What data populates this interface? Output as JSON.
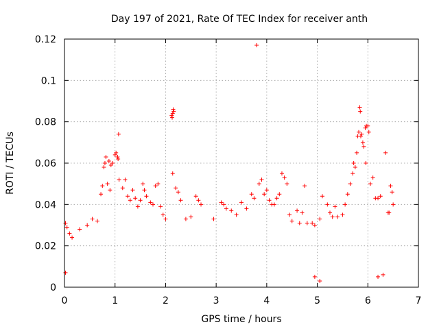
{
  "chart_data": {
    "type": "scatter",
    "title": "Day 197 of 2021, Rate Of TEC Index for receiver anth",
    "xlabel": "GPS time / hours",
    "ylabel": "ROTI / TECUs",
    "xlim": [
      0,
      7
    ],
    "ylim": [
      0,
      0.12
    ],
    "xticks": [
      0,
      1,
      2,
      3,
      4,
      5,
      6,
      7
    ],
    "xtick_labels": [
      "0",
      "1",
      "2",
      "3",
      "4",
      "5",
      "6",
      "7"
    ],
    "yticks": [
      0,
      0.02,
      0.04,
      0.06,
      0.08,
      0.1,
      0.12
    ],
    "ytick_labels": [
      "0",
      "0.02",
      "0.04",
      "0.06",
      "0.08",
      "0.1",
      "0.12"
    ],
    "grid": true,
    "marker": "+",
    "color": "#ff0000",
    "series": [
      {
        "name": "ROTI",
        "points": [
          [
            0.02,
            0.031
          ],
          [
            0.05,
            0.029
          ],
          [
            0.1,
            0.026
          ],
          [
            0.15,
            0.024
          ],
          [
            0.3,
            0.028
          ],
          [
            0.45,
            0.03
          ],
          [
            0.55,
            0.033
          ],
          [
            0.65,
            0.032
          ],
          [
            0.72,
            0.045
          ],
          [
            0.75,
            0.049
          ],
          [
            0.78,
            0.058
          ],
          [
            0.8,
            0.06
          ],
          [
            0.82,
            0.063
          ],
          [
            0.88,
            0.061
          ],
          [
            0.92,
            0.059
          ],
          [
            0.95,
            0.06
          ],
          [
            0.85,
            0.05
          ],
          [
            0.9,
            0.047
          ],
          [
            1.0,
            0.064
          ],
          [
            1.02,
            0.065
          ],
          [
            1.05,
            0.063
          ],
          [
            1.06,
            0.062
          ],
          [
            1.07,
            0.074
          ],
          [
            1.08,
            0.052
          ],
          [
            1.15,
            0.048
          ],
          [
            1.2,
            0.052
          ],
          [
            1.25,
            0.044
          ],
          [
            1.3,
            0.042
          ],
          [
            1.35,
            0.047
          ],
          [
            1.4,
            0.043
          ],
          [
            1.45,
            0.039
          ],
          [
            1.5,
            0.042
          ],
          [
            1.55,
            0.05
          ],
          [
            1.58,
            0.047
          ],
          [
            1.62,
            0.044
          ],
          [
            1.7,
            0.041
          ],
          [
            1.75,
            0.04
          ],
          [
            1.8,
            0.049
          ],
          [
            1.85,
            0.05
          ],
          [
            1.9,
            0.039
          ],
          [
            1.95,
            0.035
          ],
          [
            2.0,
            0.033
          ],
          [
            2.12,
            0.083
          ],
          [
            2.13,
            0.082
          ],
          [
            2.14,
            0.084
          ],
          [
            2.15,
            0.086
          ],
          [
            2.16,
            0.085
          ],
          [
            2.14,
            0.055
          ],
          [
            2.2,
            0.048
          ],
          [
            2.25,
            0.046
          ],
          [
            2.3,
            0.042
          ],
          [
            2.4,
            0.033
          ],
          [
            2.6,
            0.044
          ],
          [
            2.65,
            0.042
          ],
          [
            2.7,
            0.04
          ],
          [
            2.5,
            0.034
          ],
          [
            2.95,
            0.033
          ],
          [
            3.1,
            0.041
          ],
          [
            3.15,
            0.04
          ],
          [
            3.2,
            0.038
          ],
          [
            3.3,
            0.037
          ],
          [
            3.4,
            0.035
          ],
          [
            3.5,
            0.041
          ],
          [
            3.6,
            0.038
          ],
          [
            3.7,
            0.045
          ],
          [
            3.75,
            0.043
          ],
          [
            3.8,
            0.117
          ],
          [
            3.85,
            0.05
          ],
          [
            3.9,
            0.052
          ],
          [
            3.95,
            0.045
          ],
          [
            4.0,
            0.047
          ],
          [
            4.05,
            0.042
          ],
          [
            4.1,
            0.04
          ],
          [
            4.15,
            0.04
          ],
          [
            4.2,
            0.043
          ],
          [
            4.25,
            0.045
          ],
          [
            4.3,
            0.055
          ],
          [
            4.35,
            0.053
          ],
          [
            4.4,
            0.05
          ],
          [
            4.45,
            0.035
          ],
          [
            4.5,
            0.032
          ],
          [
            4.6,
            0.037
          ],
          [
            4.65,
            0.031
          ],
          [
            4.7,
            0.036
          ],
          [
            4.75,
            0.049
          ],
          [
            4.8,
            0.031
          ],
          [
            4.9,
            0.031
          ],
          [
            4.95,
            0.03
          ],
          [
            5.05,
            0.033
          ],
          [
            5.1,
            0.044
          ],
          [
            5.2,
            0.04
          ],
          [
            5.25,
            0.036
          ],
          [
            5.3,
            0.034
          ],
          [
            5.35,
            0.039
          ],
          [
            5.4,
            0.034
          ],
          [
            5.5,
            0.035
          ],
          [
            5.55,
            0.04
          ],
          [
            5.6,
            0.045
          ],
          [
            5.65,
            0.05
          ],
          [
            5.7,
            0.055
          ],
          [
            5.72,
            0.06
          ],
          [
            5.75,
            0.058
          ],
          [
            5.78,
            0.065
          ],
          [
            5.8,
            0.073
          ],
          [
            5.82,
            0.075
          ],
          [
            5.84,
            0.087
          ],
          [
            5.85,
            0.085
          ],
          [
            5.86,
            0.073
          ],
          [
            5.88,
            0.074
          ],
          [
            5.9,
            0.07
          ],
          [
            5.92,
            0.068
          ],
          [
            5.95,
            0.077
          ],
          [
            5.97,
            0.078
          ],
          [
            6.0,
            0.078
          ],
          [
            6.02,
            0.075
          ],
          [
            5.96,
            0.06
          ],
          [
            6.05,
            0.05
          ],
          [
            6.1,
            0.053
          ],
          [
            6.15,
            0.043
          ],
          [
            6.2,
            0.043
          ],
          [
            6.25,
            0.044
          ],
          [
            6.35,
            0.065
          ],
          [
            6.4,
            0.036
          ],
          [
            6.42,
            0.036
          ],
          [
            6.45,
            0.049
          ],
          [
            6.48,
            0.046
          ],
          [
            6.5,
            0.04
          ],
          [
            6.2,
            0.005
          ],
          [
            6.3,
            0.006
          ],
          [
            5.05,
            0.003
          ],
          [
            4.95,
            0.005
          ],
          [
            0.02,
            0.007
          ]
        ]
      }
    ]
  }
}
